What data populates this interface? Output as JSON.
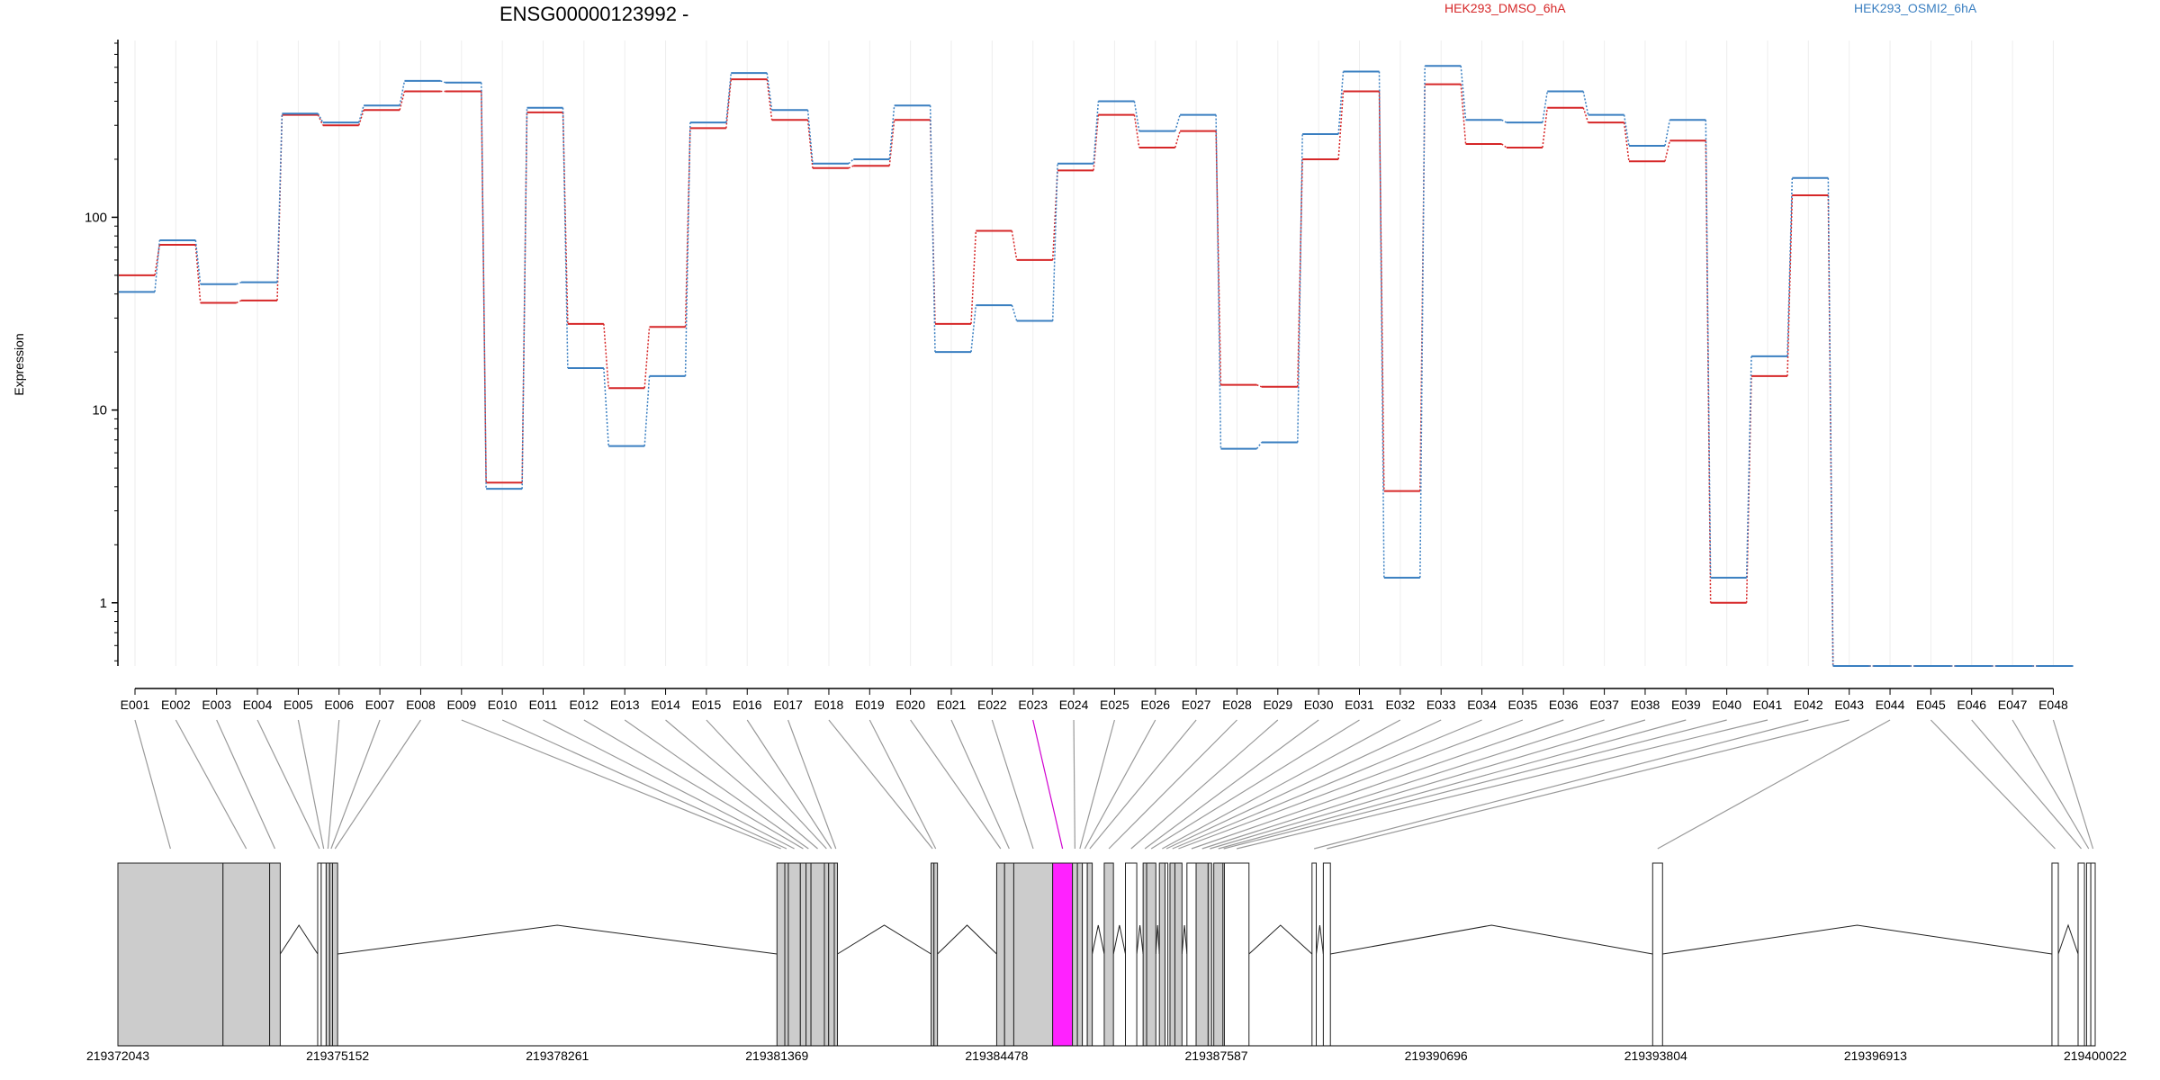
{
  "chart_data": {
    "type": "line",
    "title": "ENSG00000123992 -",
    "ylabel": "Expression",
    "xlabel": "",
    "y_scale": "log",
    "ylim": [
      0.47,
      800
    ],
    "y_ticks": [
      {
        "value": 1,
        "label": "1"
      },
      {
        "value": 10,
        "label": "10"
      },
      {
        "value": 100,
        "label": "100"
      }
    ],
    "grid": true,
    "legend_position": "top",
    "categories": [
      "E001",
      "E002",
      "E003",
      "E004",
      "E005",
      "E006",
      "E007",
      "E008",
      "E009",
      "E010",
      "E011",
      "E012",
      "E013",
      "E014",
      "E015",
      "E016",
      "E017",
      "E018",
      "E019",
      "E020",
      "E021",
      "E022",
      "E023",
      "E024",
      "E025",
      "E026",
      "E027",
      "E028",
      "E029",
      "E030",
      "E031",
      "E032",
      "E033",
      "E034",
      "E035",
      "E036",
      "E037",
      "E038",
      "E039",
      "E040",
      "E041",
      "E042",
      "E043",
      "E044",
      "E045",
      "E046",
      "E047",
      "E048"
    ],
    "highlighted_exon": "E023",
    "series": [
      {
        "name": "HEK293_DMSO_6hA",
        "color": "#d62728",
        "values": [
          50,
          72,
          36,
          37,
          340,
          300,
          360,
          450,
          450,
          4.2,
          350,
          28,
          13,
          27,
          290,
          520,
          320,
          180,
          185,
          320,
          28,
          85,
          60,
          175,
          340,
          230,
          280,
          13.5,
          13.2,
          200,
          450,
          3.8,
          490,
          240,
          230,
          370,
          310,
          195,
          250,
          1.0,
          15,
          130,
          0.47,
          0.47,
          0.47,
          0.47,
          0.47,
          0.47
        ]
      },
      {
        "name": "HEK293_OSMI2_6hA",
        "color": "#3a7fc1",
        "values": [
          41,
          76,
          45,
          46,
          345,
          310,
          380,
          510,
          500,
          3.9,
          370,
          16.5,
          6.5,
          15,
          310,
          560,
          360,
          190,
          200,
          380,
          20,
          35,
          29,
          190,
          400,
          280,
          340,
          6.3,
          6.8,
          270,
          570,
          1.35,
          610,
          320,
          310,
          450,
          340,
          235,
          320,
          1.35,
          19,
          160,
          0.47,
          0.47,
          0.47,
          0.47,
          0.47,
          0.47
        ]
      }
    ],
    "genome_axis": {
      "start": 219372043,
      "end": 219400022,
      "tick_labels": [
        "219372043",
        "219375152",
        "219378261",
        "219381369",
        "219384478",
        "219387587",
        "219390696",
        "219393804",
        "219396913",
        "219400022"
      ]
    },
    "exons_genomic": [
      [
        219372043,
        219373530
      ],
      [
        219373530,
        219374190
      ],
      [
        219374190,
        219374340
      ],
      [
        219374870,
        219374920
      ],
      [
        219374920,
        219374990
      ],
      [
        219374990,
        219375040
      ],
      [
        219375040,
        219375080
      ],
      [
        219375080,
        219375152
      ],
      [
        219381369,
        219381480
      ],
      [
        219381480,
        219381530
      ],
      [
        219381530,
        219381700
      ],
      [
        219381700,
        219381780
      ],
      [
        219381780,
        219381850
      ],
      [
        219381850,
        219382040
      ],
      [
        219382040,
        219382100
      ],
      [
        219382100,
        219382180
      ],
      [
        219382180,
        219382225
      ],
      [
        219383550,
        219383590
      ],
      [
        219383590,
        219383640
      ],
      [
        219384478,
        219384590
      ],
      [
        219384590,
        219384720
      ],
      [
        219384720,
        219385270
      ],
      [
        219385270,
        219385550
      ],
      [
        219385550,
        219385620
      ],
      [
        219385620,
        219385690
      ],
      [
        219385690,
        219385760
      ],
      [
        219385760,
        219385830
      ],
      [
        219386000,
        219386130
      ],
      [
        219386300,
        219386460
      ],
      [
        219386550,
        219386600
      ],
      [
        219386600,
        219386730
      ],
      [
        219386780,
        219386860
      ],
      [
        219386860,
        219386900
      ],
      [
        219386930,
        219387000
      ],
      [
        219387000,
        219387100
      ],
      [
        219387170,
        219387300
      ],
      [
        219387300,
        219387470
      ],
      [
        219387470,
        219387520
      ],
      [
        219387550,
        219387680
      ],
      [
        219387680,
        219387700
      ],
      [
        219387700,
        219388048
      ],
      [
        219388940,
        219389000
      ],
      [
        219389100,
        219389200
      ],
      [
        219393760,
        219393900
      ],
      [
        219399410,
        219399500
      ],
      [
        219399780,
        219399870
      ],
      [
        219399900,
        219399960
      ],
      [
        219399960,
        219400022
      ]
    ],
    "grey_exons": [
      "E001",
      "E002",
      "E003",
      "E006",
      "E007",
      "E008",
      "E009",
      "E010",
      "E011",
      "E012",
      "E013",
      "E014",
      "E015",
      "E016",
      "E017",
      "E018",
      "E019",
      "E020",
      "E021",
      "E022",
      "E024",
      "E025",
      "E027",
      "E028",
      "E030",
      "E031",
      "E032",
      "E034",
      "E035",
      "E037",
      "E038",
      "E039"
    ]
  }
}
